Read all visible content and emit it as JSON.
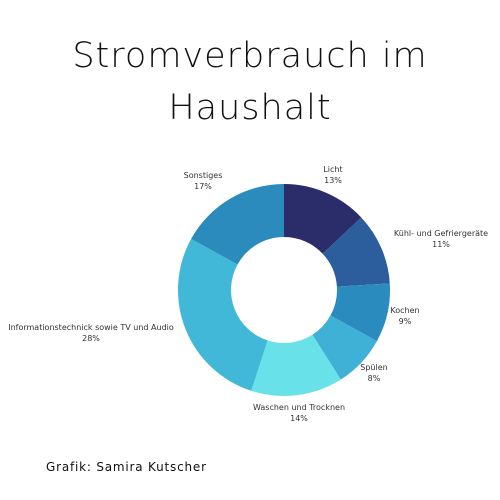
{
  "title_line1": "Stromverbrauch im",
  "title_line2": "Haushalt",
  "credit": "Grafik: Samira Kutscher",
  "chart_data": {
    "type": "pie",
    "donut": true,
    "categories": [
      "Licht",
      "Kühl- und Gefriergeräte",
      "Kochen",
      "Spülen",
      "Waschen und Trocknen",
      "Informationstechnick sowie TV und Audio",
      "Sonstiges"
    ],
    "values": [
      13,
      11,
      9,
      8,
      14,
      28,
      17
    ],
    "value_labels": [
      "13%",
      "11%",
      "9%",
      "8%",
      "14%",
      "28%",
      "17%"
    ],
    "colors": [
      "#2b2d6b",
      "#2c5d9c",
      "#2a8bbf",
      "#3fb0d6",
      "#68e1e8",
      "#42b8d8",
      "#2b8bbc"
    ]
  }
}
